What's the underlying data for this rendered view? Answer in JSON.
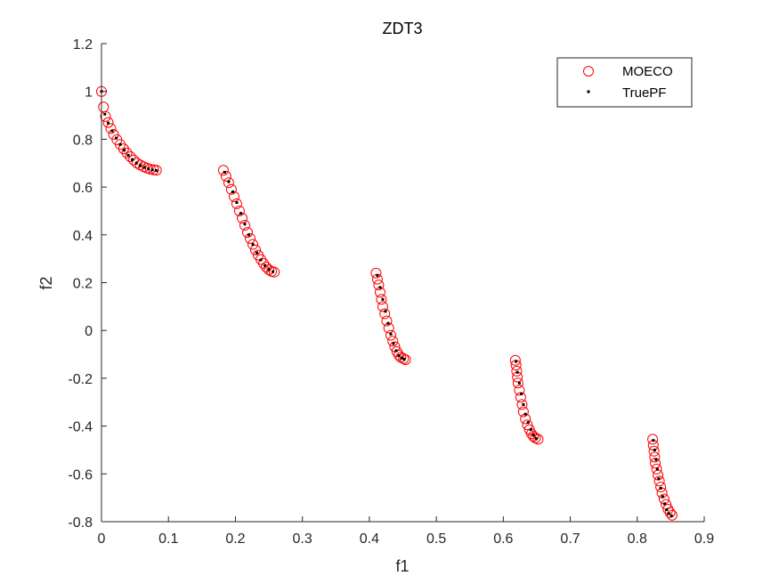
{
  "chart_data": {
    "type": "scatter",
    "title": "ZDT3",
    "xlabel": "f1",
    "ylabel": "f2",
    "xlim": [
      0,
      0.9
    ],
    "ylim": [
      -0.8,
      1.2
    ],
    "xticks": [
      "0",
      "0.1",
      "0.2",
      "0.3",
      "0.4",
      "0.5",
      "0.6",
      "0.7",
      "0.8",
      "0.9"
    ],
    "yticks": [
      "-0.8",
      "-0.6",
      "-0.4",
      "-0.2",
      "0",
      "0.2",
      "0.4",
      "0.6",
      "0.8",
      "1",
      "1.2"
    ],
    "grid": false,
    "legend_position": "top-right",
    "colors": {
      "moeco": "#ff0000",
      "truepf": "#000000",
      "axis": "#262626"
    },
    "series": [
      {
        "name": "MOECO",
        "marker": "open-circle",
        "x": [
          0.0,
          0.003,
          0.006,
          0.01,
          0.014,
          0.018,
          0.023,
          0.028,
          0.033,
          0.038,
          0.043,
          0.048,
          0.053,
          0.058,
          0.063,
          0.068,
          0.073,
          0.078,
          0.082,
          0.182,
          0.186,
          0.19,
          0.194,
          0.198,
          0.202,
          0.206,
          0.21,
          0.214,
          0.218,
          0.222,
          0.226,
          0.23,
          0.234,
          0.238,
          0.242,
          0.246,
          0.25,
          0.254,
          0.258,
          0.41,
          0.412,
          0.414,
          0.416,
          0.418,
          0.42,
          0.423,
          0.426,
          0.429,
          0.432,
          0.435,
          0.438,
          0.441,
          0.444,
          0.447,
          0.451,
          0.454,
          0.618,
          0.619,
          0.62,
          0.621,
          0.622,
          0.624,
          0.626,
          0.628,
          0.63,
          0.633,
          0.636,
          0.639,
          0.642,
          0.645,
          0.648,
          0.652,
          0.823,
          0.824,
          0.825,
          0.826,
          0.827,
          0.829,
          0.831,
          0.833,
          0.835,
          0.837,
          0.84,
          0.843,
          0.846,
          0.849,
          0.852
        ],
        "y": [
          1.0,
          0.935,
          0.895,
          0.87,
          0.845,
          0.82,
          0.798,
          0.778,
          0.76,
          0.743,
          0.727,
          0.713,
          0.7,
          0.692,
          0.685,
          0.679,
          0.675,
          0.672,
          0.67,
          0.67,
          0.645,
          0.618,
          0.59,
          0.56,
          0.53,
          0.5,
          0.47,
          0.44,
          0.41,
          0.385,
          0.36,
          0.337,
          0.315,
          0.297,
          0.28,
          0.265,
          0.254,
          0.247,
          0.244,
          0.24,
          0.215,
          0.19,
          0.16,
          0.13,
          0.1,
          0.07,
          0.04,
          0.01,
          -0.02,
          -0.045,
          -0.068,
          -0.088,
          -0.103,
          -0.113,
          -0.118,
          -0.122,
          -0.125,
          -0.145,
          -0.17,
          -0.195,
          -0.22,
          -0.25,
          -0.28,
          -0.31,
          -0.34,
          -0.37,
          -0.395,
          -0.415,
          -0.432,
          -0.443,
          -0.45,
          -0.455,
          -0.455,
          -0.48,
          -0.505,
          -0.53,
          -0.555,
          -0.58,
          -0.605,
          -0.63,
          -0.655,
          -0.68,
          -0.705,
          -0.728,
          -0.748,
          -0.762,
          -0.773
        ]
      },
      {
        "name": "TruePF",
        "marker": "dot",
        "x": [
          0.0,
          0.005,
          0.01,
          0.016,
          0.022,
          0.028,
          0.034,
          0.04,
          0.046,
          0.052,
          0.058,
          0.064,
          0.07,
          0.076,
          0.082,
          0.184,
          0.19,
          0.196,
          0.202,
          0.208,
          0.214,
          0.22,
          0.226,
          0.232,
          0.238,
          0.244,
          0.25,
          0.256,
          0.412,
          0.416,
          0.42,
          0.424,
          0.428,
          0.432,
          0.436,
          0.44,
          0.444,
          0.448,
          0.452,
          0.619,
          0.621,
          0.624,
          0.627,
          0.63,
          0.633,
          0.637,
          0.641,
          0.645,
          0.649,
          0.824,
          0.826,
          0.828,
          0.83,
          0.832,
          0.835,
          0.838,
          0.841,
          0.844,
          0.847,
          0.851
        ],
        "y": [
          1.0,
          0.905,
          0.868,
          0.835,
          0.805,
          0.778,
          0.754,
          0.733,
          0.715,
          0.7,
          0.69,
          0.682,
          0.676,
          0.672,
          0.669,
          0.662,
          0.622,
          0.58,
          0.535,
          0.49,
          0.445,
          0.4,
          0.36,
          0.325,
          0.295,
          0.272,
          0.255,
          0.246,
          0.23,
          0.18,
          0.13,
          0.08,
          0.03,
          -0.015,
          -0.055,
          -0.085,
          -0.105,
          -0.115,
          -0.12,
          -0.13,
          -0.175,
          -0.22,
          -0.265,
          -0.31,
          -0.35,
          -0.385,
          -0.415,
          -0.438,
          -0.452,
          -0.46,
          -0.5,
          -0.54,
          -0.58,
          -0.62,
          -0.66,
          -0.695,
          -0.725,
          -0.75,
          -0.766,
          -0.775
        ]
      }
    ]
  }
}
